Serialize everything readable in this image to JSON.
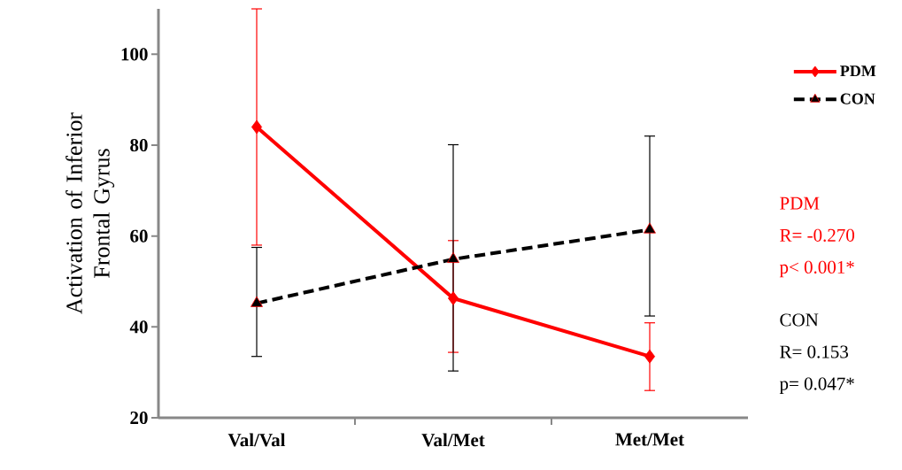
{
  "chart_data": {
    "type": "line",
    "ylabel": "Activation of Inferior Frontal Gyrus",
    "categories": [
      "Val/Val",
      "Val/Met",
      "Met/Met"
    ],
    "ylim": [
      20,
      110
    ],
    "yticks": [
      20,
      40,
      60,
      80,
      100
    ],
    "series": [
      {
        "name": "PDM",
        "color": "#ff0000",
        "marker": "diamond",
        "line_style": "solid",
        "values": [
          84,
          46.3,
          33.5
        ],
        "errors": [
          [
            58,
            110
          ],
          [
            34.4,
            59
          ],
          [
            26,
            40.9
          ]
        ]
      },
      {
        "name": "CON",
        "color": "#000000",
        "marker": "triangle",
        "line_style": "dashed",
        "values": [
          45.2,
          54.9,
          61.4
        ],
        "errors": [
          [
            33.5,
            57.5
          ],
          [
            30.3,
            80.1
          ],
          [
            42.4,
            82
          ]
        ]
      }
    ],
    "legend": "top right",
    "grid": false,
    "annotations": [
      "PDM",
      "R= -0.270",
      "p< 0.001*",
      "CON",
      "R= 0.153",
      "p= 0.047*"
    ]
  }
}
